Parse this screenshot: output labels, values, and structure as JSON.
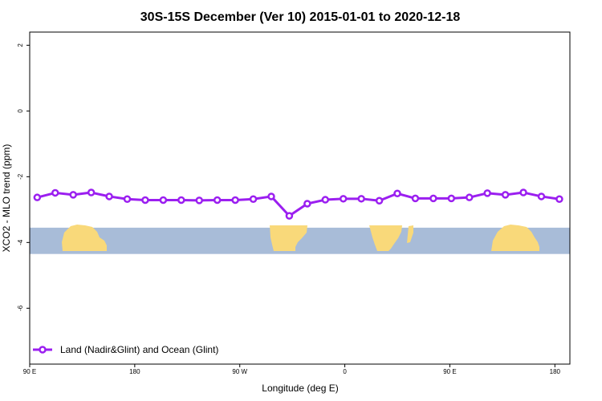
{
  "chart_data": {
    "type": "line",
    "title": "30S-15S December (Ver 10)   2015-01-01 to 2020-12-18",
    "xlabel": "Longitude (deg E)",
    "ylabel": "XCO2 - MLO trend (ppm)",
    "xlim": [
      -90,
      270
    ],
    "ylim": [
      -7.7,
      2.4
    ],
    "xticks": [
      {
        "value": -90,
        "label": "90 E"
      },
      {
        "value": -20,
        "label": "180"
      },
      {
        "value": 50,
        "label": "90 W"
      },
      {
        "value": 120,
        "label": "0"
      },
      {
        "value": 190,
        "label": "90 E"
      },
      {
        "value": 260,
        "label": "180"
      }
    ],
    "yticks": [
      2,
      0,
      -2,
      -4,
      -6
    ],
    "series": [
      {
        "name": "Land (Nadir&Glint) and Ocean (Glint)",
        "color": "#9b1ff0",
        "x": [
          -85,
          -73,
          -61,
          -49,
          -37,
          -25,
          -13,
          -1,
          11,
          23,
          35,
          47,
          59,
          71,
          83,
          95,
          107,
          119,
          131,
          143,
          155,
          167,
          179,
          191,
          203,
          215,
          227,
          239,
          251,
          263
        ],
        "y": [
          -2.63,
          -2.49,
          -2.55,
          -2.48,
          -2.6,
          -2.68,
          -2.71,
          -2.71,
          -2.71,
          -2.72,
          -2.71,
          -2.71,
          -2.68,
          -2.6,
          -3.19,
          -2.82,
          -2.7,
          -2.67,
          -2.67,
          -2.73,
          -2.51,
          -2.66,
          -2.66,
          -2.66,
          -2.63,
          -2.5,
          -2.55,
          -2.48,
          -2.6,
          -2.68
        ]
      }
    ],
    "map_strip": {
      "y_top": -3.55,
      "y_bottom": -4.35,
      "ocean_color": "#a8bcd8",
      "land_color": "#f9d97a"
    },
    "legend_position": "bottom-left"
  }
}
